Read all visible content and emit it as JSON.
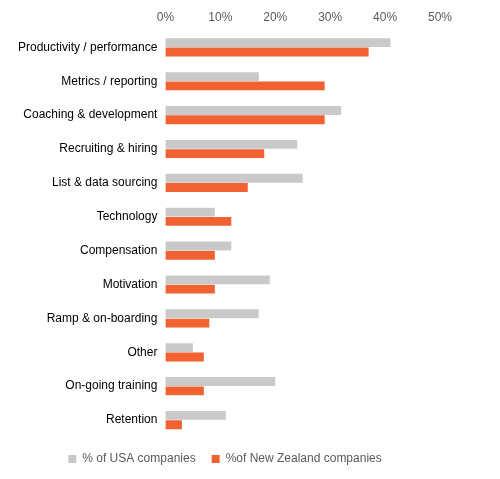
{
  "chart_data": {
    "type": "bar",
    "orientation": "horizontal",
    "categories": [
      "Productivity / performance",
      "Metrics / reporting",
      "Coaching & development",
      "Recruiting & hiring",
      "List & data sourcing",
      "Technology",
      "Compensation",
      "Motivation",
      "Ramp & on-boarding",
      "Other",
      "On-going training",
      "Retention"
    ],
    "series": [
      {
        "name": "% of USA companies",
        "color": "#c9c9c9",
        "values": [
          41,
          17,
          32,
          24,
          25,
          9,
          12,
          19,
          17,
          5,
          20,
          11
        ]
      },
      {
        "name": "%of New Zealand companies",
        "color": "#f26132",
        "values": [
          37,
          29,
          29,
          18,
          15,
          12,
          9,
          9,
          8,
          7,
          7,
          3
        ]
      }
    ],
    "xlim": [
      0,
      50
    ],
    "xticks": [
      {
        "value": 0,
        "label": "0%"
      },
      {
        "value": 10,
        "label": "10%"
      },
      {
        "value": 20,
        "label": "20%"
      },
      {
        "value": 30,
        "label": "30%"
      },
      {
        "value": 40,
        "label": "40%"
      },
      {
        "value": 50,
        "label": "50%"
      }
    ],
    "grid": false,
    "legend": "bottom"
  }
}
